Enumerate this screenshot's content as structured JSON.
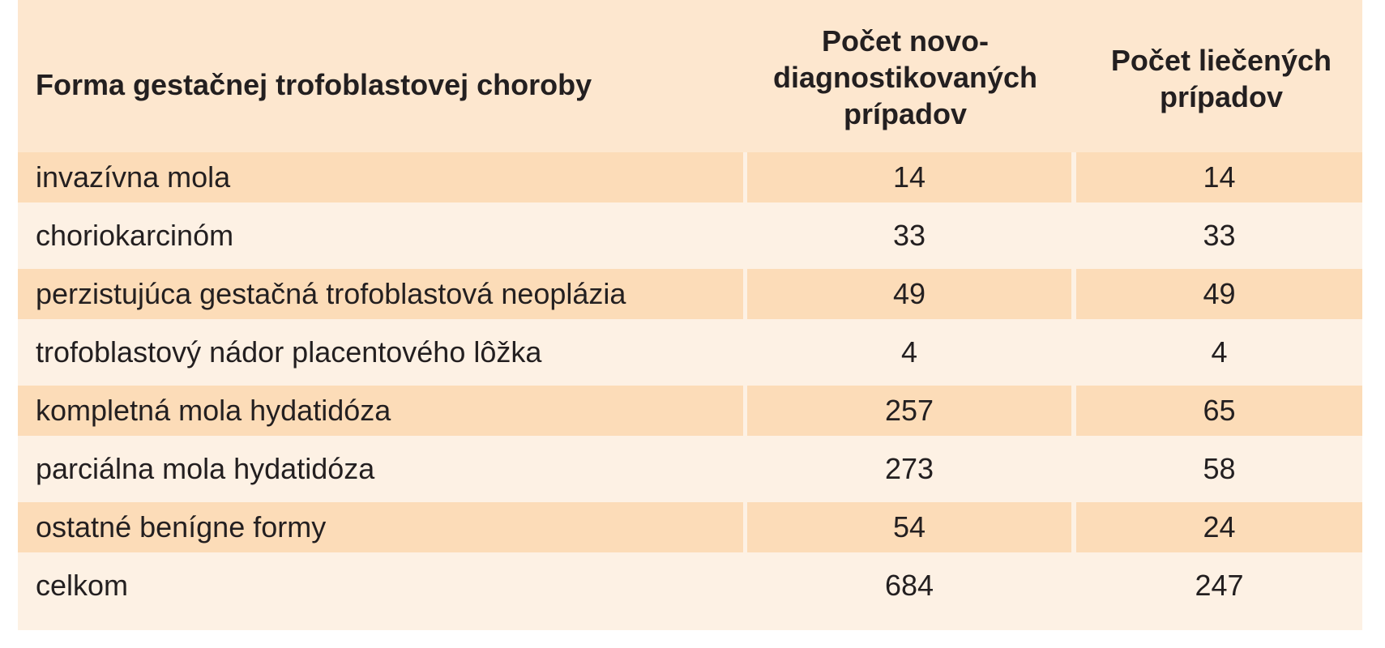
{
  "table": {
    "headers": [
      "Forma gestačnej trofoblastovej choroby",
      [
        "Počet novo-",
        "diagnostikovaných",
        "prípadov"
      ],
      [
        "Počet liečených",
        "prípadov"
      ]
    ],
    "rows": [
      {
        "form": "invazívna mola",
        "new_cases": "14",
        "treated_cases": "14"
      },
      {
        "form": "choriokarcinóm",
        "new_cases": "33",
        "treated_cases": "33"
      },
      {
        "form": "perzistujúca gestačná trofoblastová neoplázia",
        "new_cases": "49",
        "treated_cases": "49"
      },
      {
        "form": "trofoblastový nádor placentového lôžka",
        "new_cases": "4",
        "treated_cases": "4"
      },
      {
        "form": "kompletná mola hydatidóza",
        "new_cases": "257",
        "treated_cases": "65"
      },
      {
        "form": "parciálna mola hydatidóza",
        "new_cases": "273",
        "treated_cases": "58"
      },
      {
        "form": "ostatné benígne formy",
        "new_cases": "54",
        "treated_cases": "24"
      },
      {
        "form": "celkom",
        "new_cases": "684",
        "treated_cases": "247"
      }
    ]
  },
  "colors": {
    "panel": "#fdf1e4",
    "header": "#fde7cf",
    "stripe": "#fcdcb8",
    "text": "#231f20"
  }
}
